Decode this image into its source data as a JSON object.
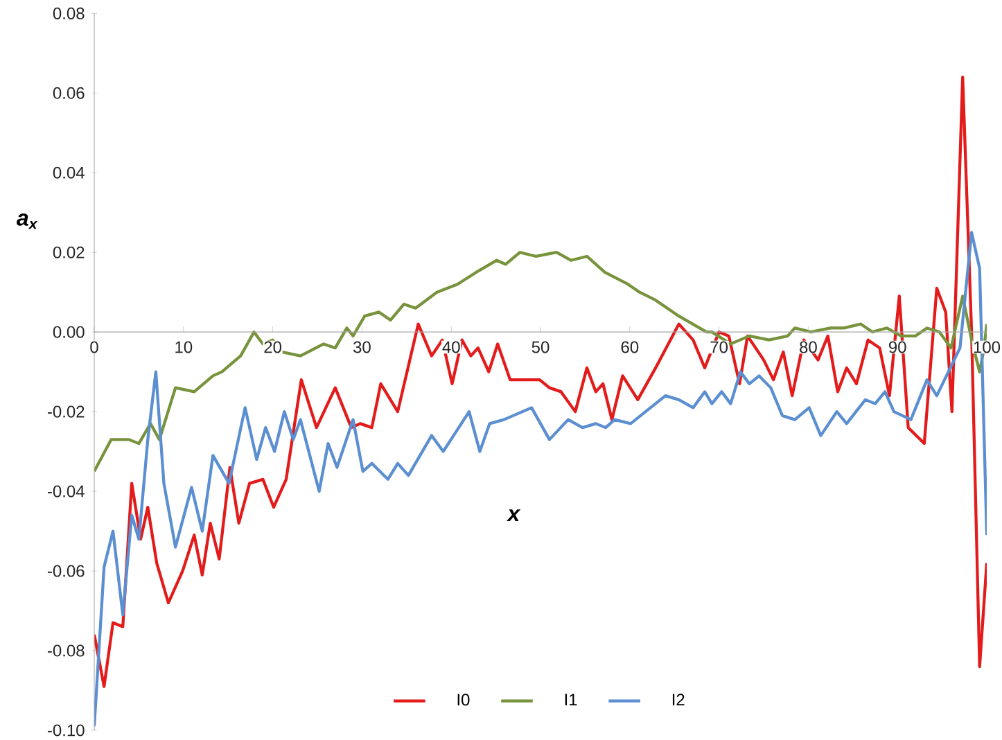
{
  "chart_data": {
    "type": "line",
    "xlabel": "x",
    "ylabel": "a$_{x}$",
    "xlim": [
      0,
      100
    ],
    "xticks": [
      0,
      10,
      20,
      30,
      40,
      50,
      60,
      70,
      80,
      90,
      100
    ],
    "ylim": [
      -0.1,
      0.08
    ],
    "yticks": [
      {
        "value": -0.1,
        "label": "-0.10"
      },
      {
        "value": -0.08,
        "label": "-0.08"
      },
      {
        "value": -0.06,
        "label": "-0.06"
      },
      {
        "value": -0.04,
        "label": "-0.04"
      },
      {
        "value": -0.02,
        "label": "-0.02"
      },
      {
        "value": 0,
        "label": "0.00"
      },
      {
        "value": 0.02,
        "label": "0.02"
      },
      {
        "value": 0.04,
        "label": "0.04"
      },
      {
        "value": 0.06,
        "label": "0.06"
      },
      {
        "value": 0.08,
        "label": "0.08"
      }
    ],
    "legend": "bottom",
    "grid": false,
    "line_style": "solid",
    "series": [
      {
        "name": "I0",
        "color": "#e31b1b",
        "x": [
          0,
          1.1,
          2.1,
          3.2,
          4.2,
          5.2,
          6.0,
          7.0,
          8.3,
          9.9,
          11.2,
          12.1,
          13.0,
          14.0,
          15.2,
          16.2,
          17.4,
          18.9,
          20.1,
          21.5,
          23.2,
          24.9,
          27.0,
          28.8,
          29.8,
          31.1,
          32.1,
          34.0,
          36.3,
          37.8,
          39.0,
          40.1,
          41.2,
          42.2,
          43.0,
          44.2,
          45.2,
          46.6,
          48.4,
          49.9,
          51.0,
          52.3,
          53.9,
          55.2,
          56.2,
          57.0,
          58.0,
          59.2,
          60.9,
          62.9,
          65.5,
          67.1,
          68.4,
          70.0,
          71.1,
          72.3,
          73.2,
          75.0,
          76.1,
          77.2,
          78.2,
          79.5,
          81.1,
          82.2,
          83.3,
          84.3,
          85.4,
          86.7,
          88.0,
          89.1,
          90.2,
          91.2,
          93.0,
          94.4,
          95.4,
          96.1,
          97.3,
          98.3,
          99.2,
          100
        ],
        "values": [
          -0.076,
          -0.089,
          -0.073,
          -0.074,
          -0.038,
          -0.052,
          -0.044,
          -0.058,
          -0.068,
          -0.06,
          -0.051,
          -0.061,
          -0.048,
          -0.057,
          -0.034,
          -0.048,
          -0.038,
          -0.037,
          -0.044,
          -0.037,
          -0.012,
          -0.024,
          -0.014,
          -0.024,
          -0.023,
          -0.024,
          -0.013,
          -0.02,
          0.002,
          -0.006,
          -0.002,
          -0.013,
          -0.002,
          -0.006,
          -0.004,
          -0.01,
          -0.003,
          -0.012,
          -0.012,
          -0.012,
          -0.014,
          -0.015,
          -0.02,
          -0.009,
          -0.015,
          -0.013,
          -0.022,
          -0.011,
          -0.017,
          -0.009,
          0.002,
          -0.002,
          -0.009,
          0.0,
          -0.001,
          -0.013,
          -0.001,
          -0.007,
          -0.012,
          -0.005,
          -0.016,
          -0.002,
          -0.007,
          -0.001,
          -0.015,
          -0.009,
          -0.013,
          -0.002,
          -0.004,
          -0.016,
          0.009,
          -0.024,
          -0.028,
          0.011,
          0.005,
          -0.02,
          0.064,
          0.0,
          -0.084,
          -0.058
        ]
      },
      {
        "name": "I1",
        "color": "#77933c",
        "x": [
          0,
          1.9,
          3.9,
          5.0,
          6.3,
          7.3,
          9.1,
          11.2,
          13.3,
          14.3,
          16.4,
          17.9,
          18.9,
          20.0,
          21.0,
          23.1,
          25.7,
          27.0,
          28.3,
          29.0,
          30.3,
          31.9,
          33.2,
          34.7,
          36.0,
          38.4,
          40.7,
          42.8,
          45.1,
          46.1,
          47.7,
          49.5,
          51.8,
          53.4,
          55.2,
          57.2,
          59.8,
          61.1,
          62.9,
          65.5,
          68.6,
          69.2,
          71.3,
          73.4,
          75.6,
          77.7,
          78.5,
          80.3,
          82.5,
          84.0,
          85.9,
          87.2,
          88.8,
          90.4,
          92.0,
          93.3,
          94.7,
          96.0,
          97.3,
          98.3,
          99.2,
          99.7,
          100
        ],
        "values": [
          -0.035,
          -0.027,
          -0.027,
          -0.028,
          -0.023,
          -0.027,
          -0.014,
          -0.015,
          -0.011,
          -0.01,
          -0.006,
          0.0,
          -0.003,
          -0.002,
          -0.005,
          -0.006,
          -0.003,
          -0.004,
          0.001,
          -0.001,
          0.004,
          0.005,
          0.003,
          0.007,
          0.006,
          0.01,
          0.012,
          0.015,
          0.018,
          0.017,
          0.02,
          0.019,
          0.02,
          0.018,
          0.019,
          0.015,
          0.012,
          0.01,
          0.008,
          0.004,
          0.0,
          0.0,
          -0.003,
          -0.001,
          -0.002,
          -0.001,
          0.001,
          0.0,
          0.001,
          0.001,
          0.002,
          0.0,
          0.001,
          -0.001,
          -0.001,
          0.001,
          0.0,
          -0.004,
          0.009,
          -0.002,
          -0.01,
          -0.004,
          0.002
        ]
      },
      {
        "name": "I2",
        "color": "#5b8fd1",
        "x": [
          0,
          1.1,
          2.1,
          3.2,
          4.2,
          5.0,
          6.0,
          6.9,
          7.8,
          9.1,
          10.9,
          12.1,
          13.3,
          15.1,
          16.9,
          18.2,
          19.2,
          20.2,
          21.3,
          22.3,
          23.1,
          25.2,
          26.2,
          27.2,
          29.0,
          30.1,
          31.1,
          32.9,
          34.0,
          35.2,
          37.8,
          39.1,
          42.0,
          43.2,
          44.3,
          45.9,
          49.0,
          51.0,
          53.1,
          54.7,
          56.2,
          57.3,
          58.3,
          60.1,
          64.0,
          65.5,
          67.1,
          68.4,
          69.2,
          70.3,
          71.3,
          72.4,
          73.4,
          74.5,
          75.8,
          77.1,
          78.5,
          80.1,
          81.4,
          83.2,
          84.3,
          86.4,
          87.5,
          88.6,
          89.6,
          91.5,
          93.3,
          94.4,
          95.7,
          97.0,
          98.3,
          99.2,
          100
        ],
        "values": [
          -0.099,
          -0.059,
          -0.05,
          -0.071,
          -0.046,
          -0.052,
          -0.027,
          -0.01,
          -0.038,
          -0.054,
          -0.039,
          -0.05,
          -0.031,
          -0.038,
          -0.019,
          -0.032,
          -0.024,
          -0.03,
          -0.02,
          -0.027,
          -0.022,
          -0.04,
          -0.028,
          -0.034,
          -0.022,
          -0.035,
          -0.033,
          -0.037,
          -0.033,
          -0.036,
          -0.026,
          -0.03,
          -0.02,
          -0.03,
          -0.023,
          -0.022,
          -0.019,
          -0.027,
          -0.022,
          -0.024,
          -0.023,
          -0.024,
          -0.022,
          -0.023,
          -0.016,
          -0.017,
          -0.019,
          -0.015,
          -0.018,
          -0.015,
          -0.018,
          -0.01,
          -0.013,
          -0.011,
          -0.014,
          -0.021,
          -0.022,
          -0.019,
          -0.026,
          -0.02,
          -0.023,
          -0.017,
          -0.018,
          -0.015,
          -0.02,
          -0.022,
          -0.012,
          -0.016,
          -0.01,
          -0.004,
          0.025,
          0.016,
          -0.051
        ]
      }
    ]
  }
}
